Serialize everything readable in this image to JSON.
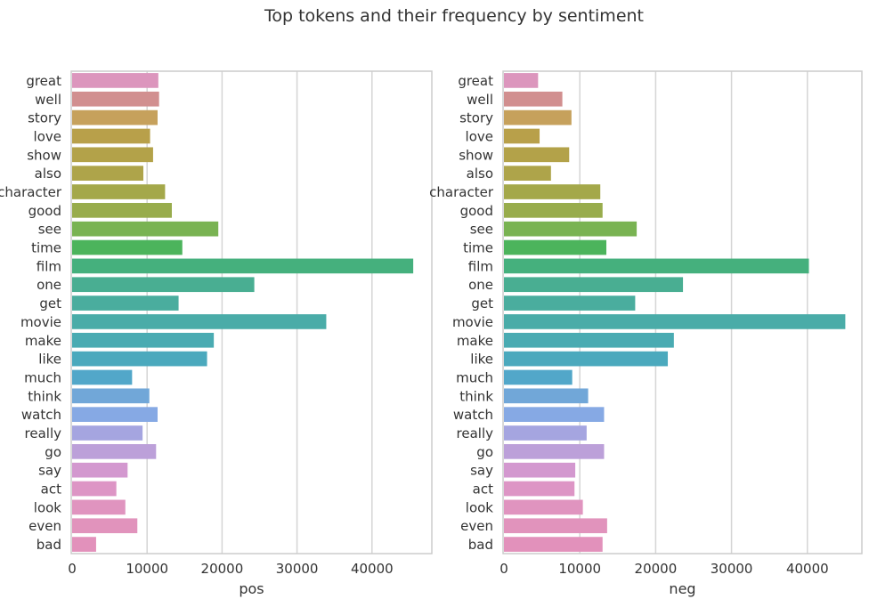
{
  "chart_data": {
    "type": "bar",
    "orientation": "horizontal",
    "title": "Top tokens and their frequency by sentiment",
    "categories": [
      "great",
      "well",
      "story",
      "love",
      "show",
      "also",
      "character",
      "good",
      "see",
      "time",
      "film",
      "one",
      "get",
      "movie",
      "make",
      "like",
      "much",
      "think",
      "watch",
      "really",
      "go",
      "say",
      "act",
      "look",
      "even",
      "bad"
    ],
    "colors": [
      "#dc96bd",
      "#d18f8f",
      "#c6a15c",
      "#b8a04a",
      "#b3a249",
      "#aea44a",
      "#a4a84a",
      "#98ac4c",
      "#79b352",
      "#4cb45c",
      "#45b07d",
      "#49ae92",
      "#4aad9e",
      "#4aaca8",
      "#4aabb2",
      "#4ba9bd",
      "#52a7c9",
      "#71a7d8",
      "#86a9e4",
      "#a5a5e0",
      "#bca0d9",
      "#d398cf",
      "#dd95c5",
      "#e094bf",
      "#e193bc",
      "#e291bb"
    ],
    "ticks": [
      0,
      10000,
      20000,
      30000,
      40000
    ],
    "xlim": [
      0,
      48000
    ],
    "grid": true,
    "panels": [
      {
        "xlabel": "pos",
        "values": [
          11500,
          11600,
          11400,
          10400,
          10800,
          9500,
          12400,
          13300,
          19500,
          14700,
          45500,
          24300,
          14200,
          33900,
          18900,
          18000,
          8000,
          10300,
          11400,
          9400,
          11200,
          7400,
          5900,
          7100,
          8700,
          3200
        ]
      },
      {
        "xlabel": "neg",
        "values": [
          4500,
          7700,
          8900,
          4700,
          8600,
          6200,
          12700,
          13000,
          17500,
          13500,
          40200,
          23600,
          17300,
          45000,
          22400,
          21600,
          9000,
          11100,
          13200,
          10900,
          13200,
          9400,
          9300,
          10400,
          13600,
          13000
        ]
      }
    ]
  }
}
